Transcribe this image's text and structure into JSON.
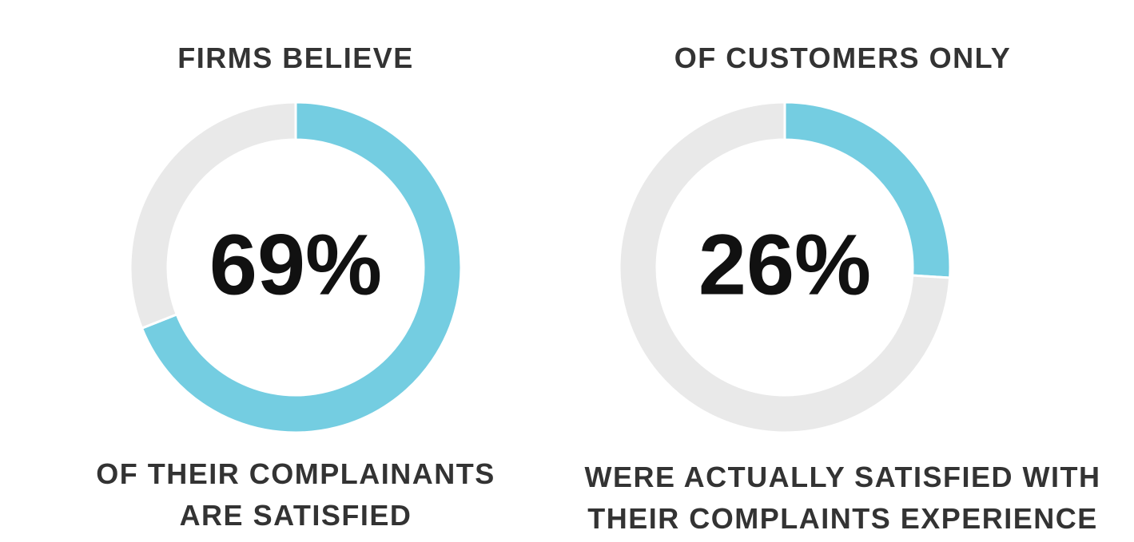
{
  "colors": {
    "accent": "#74cde1",
    "track": "#e9e9e9",
    "text": "#333333",
    "value_text": "#111111",
    "background": "#ffffff"
  },
  "chart_data": [
    {
      "type": "pie",
      "title": "FIRMS BELIEVE",
      "center_label": "69%",
      "caption": [
        "OF THEIR COMPLAINANTS",
        "ARE SATISFIED"
      ],
      "slices": [
        {
          "label": "",
          "value": 69,
          "color": "#74cde1"
        },
        {
          "label": "",
          "value": 31,
          "color": "#e9e9e9"
        }
      ],
      "legend": "none"
    },
    {
      "type": "pie",
      "title": "OF CUSTOMERS ONLY",
      "center_label": "26%",
      "caption": [
        "WERE ACTUALLY SATISFIED WITH",
        "THEIR COMPLAINTS EXPERIENCE"
      ],
      "slices": [
        {
          "label": "",
          "value": 26,
          "color": "#74cde1"
        },
        {
          "label": "",
          "value": 74,
          "color": "#e9e9e9"
        }
      ],
      "legend": "none"
    }
  ]
}
